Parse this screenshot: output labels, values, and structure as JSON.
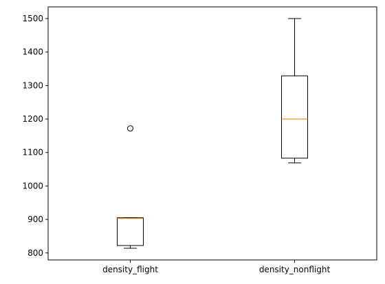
{
  "chart_data": {
    "type": "box",
    "title": "",
    "xlabel": "",
    "ylabel": "",
    "ylim": [
      779,
      1535
    ],
    "yticks": [
      800,
      900,
      1000,
      1100,
      1200,
      1300,
      1400,
      1500
    ],
    "grid": false,
    "colors": {
      "box": "#000000",
      "median": "#ff7f0e",
      "flier": "#000000"
    },
    "boxes": [
      {
        "label": "density_flight",
        "whisker_low": 814,
        "q1": 822,
        "median": 903,
        "q3": 905,
        "whisker_high": 905,
        "fliers": [
          1172
        ]
      },
      {
        "label": "density_nonflight",
        "whisker_low": 1069,
        "q1": 1083,
        "median": 1200,
        "q3": 1329,
        "whisker_high": 1500,
        "fliers": []
      }
    ]
  }
}
